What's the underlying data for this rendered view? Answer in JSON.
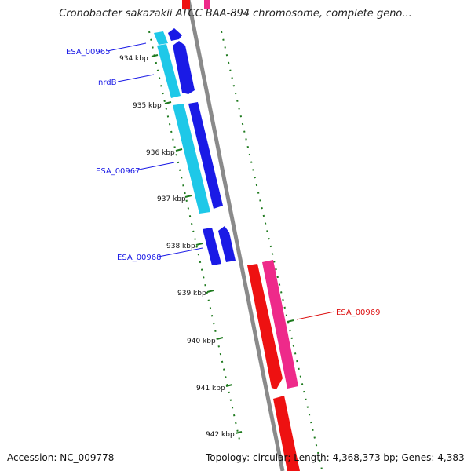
{
  "title": "Cronobacter sakazakii ATCC BAA-894 chromosome, complete geno...",
  "footer": {
    "accession": "Accession: NC_009778",
    "summary": "Topology: circular; Length: 4,368,373 bp; Genes: 4,383"
  },
  "ticks": [
    "934 kbp",
    "935 kbp",
    "936 kbp",
    "937 kbp",
    "938 kbp",
    "939 kbp",
    "940 kbp",
    "941 kbp",
    "942 kbp"
  ],
  "genes": [
    {
      "label": "ESA_00965",
      "strand": "minus",
      "color": "#1a1ae6"
    },
    {
      "label": "nrdB",
      "strand": "minus",
      "color": "#1a1ae6"
    },
    {
      "label": "ESA_00967",
      "strand": "minus",
      "color": "#1a1ae6"
    },
    {
      "label": "ESA_00968",
      "strand": "minus",
      "color": "#1a1ae6"
    },
    {
      "label": "ESA_00969",
      "strand": "plus",
      "color": "#ee1111"
    }
  ],
  "colors": {
    "backbone": "#8a8a8a",
    "tick": "#1e7a1e",
    "gene_minus": "#1a1ae6",
    "cds_minus": "#1ec8e8",
    "gene_plus": "#ee1111",
    "cds_plus": "#ee2a8a",
    "label_minus": "#1a1ae6",
    "label_plus": "#dd1111"
  }
}
